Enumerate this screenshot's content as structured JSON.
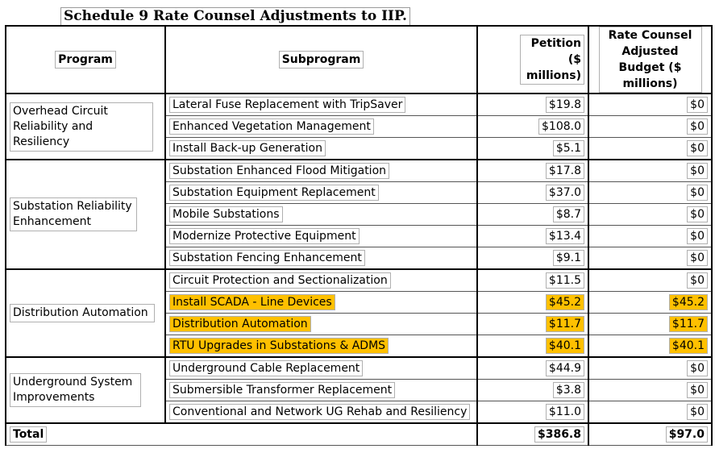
{
  "title": "Schedule 9 Rate Counsel Adjustments to IIP.",
  "headers": {
    "program": "Program",
    "subprogram": "Subprogram",
    "petition": "Petition ($ millions)",
    "rate_counsel": "Rate Counsel Adjusted Budget ($ millions)"
  },
  "highlight_color": "#ffc000",
  "groups": [
    {
      "program": "Overhead Circuit Reliability and Resiliency",
      "rows": [
        {
          "sub": "Lateral Fuse Replacement with TripSaver",
          "petition": "$19.8",
          "rc": "$0",
          "highlight": false
        },
        {
          "sub": "Enhanced Vegetation Management",
          "petition": "$108.0",
          "rc": "$0",
          "highlight": false
        },
        {
          "sub": "Install Back-up Generation",
          "petition": "$5.1",
          "rc": "$0",
          "highlight": false
        }
      ]
    },
    {
      "program": "Substation Reliability Enhancement",
      "rows": [
        {
          "sub": "Substation Enhanced Flood Mitigation",
          "petition": "$17.8",
          "rc": "$0",
          "highlight": false
        },
        {
          "sub": "Substation Equipment Replacement",
          "petition": "$37.0",
          "rc": "$0",
          "highlight": false
        },
        {
          "sub": "Mobile Substations",
          "petition": "$8.7",
          "rc": "$0",
          "highlight": false
        },
        {
          "sub": "Modernize Protective Equipment",
          "petition": "$13.4",
          "rc": "$0",
          "highlight": false
        },
        {
          "sub": "Substation Fencing Enhancement",
          "petition": "$9.1",
          "rc": "$0",
          "highlight": false
        }
      ]
    },
    {
      "program": "Distribution Automation",
      "rows": [
        {
          "sub": "Circuit Protection and Sectionalization",
          "petition": "$11.5",
          "rc": "$0",
          "highlight": false
        },
        {
          "sub": "Install SCADA - Line Devices",
          "petition": "$45.2",
          "rc": "$45.2",
          "highlight": true
        },
        {
          "sub": "Distribution Automation",
          "petition": "$11.7",
          "rc": "$11.7",
          "highlight": true
        },
        {
          "sub": "RTU Upgrades in Substations & ADMS",
          "petition": "$40.1",
          "rc": "$40.1",
          "highlight": true
        }
      ]
    },
    {
      "program": "Underground System Improvements",
      "rows": [
        {
          "sub": "Underground Cable Replacement",
          "petition": "$44.9",
          "rc": "$0",
          "highlight": false
        },
        {
          "sub": "Submersible Transformer Replacement",
          "petition": "$3.8",
          "rc": "$0",
          "highlight": false
        },
        {
          "sub": "Conventional and Network UG Rehab and Resiliency",
          "petition": "$11.0",
          "rc": "$0",
          "highlight": false
        }
      ]
    }
  ],
  "total": {
    "label": "Total",
    "petition": "$386.8",
    "rc": "$97.0"
  }
}
